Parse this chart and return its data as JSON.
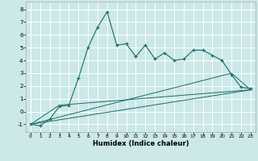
{
  "xlabel": "Humidex (Indice chaleur)",
  "xlim": [
    -0.5,
    23.5
  ],
  "ylim": [
    -1.6,
    8.6
  ],
  "yticks": [
    -1,
    0,
    1,
    2,
    3,
    4,
    5,
    6,
    7,
    8
  ],
  "xticks": [
    0,
    1,
    2,
    3,
    4,
    5,
    6,
    7,
    8,
    9,
    10,
    11,
    12,
    13,
    14,
    15,
    16,
    17,
    18,
    19,
    20,
    21,
    22,
    23
  ],
  "bg_color": "#cce8e8",
  "line_color": "#1a6b6b",
  "grid_color": "#ffffff",
  "series1_x": [
    0,
    1,
    2,
    3,
    4,
    5,
    6,
    7,
    8,
    9,
    10,
    11,
    12,
    13,
    14,
    15,
    16,
    17,
    18,
    19,
    20,
    21,
    22,
    23
  ],
  "series1_y": [
    -1.0,
    -1.1,
    -0.6,
    0.4,
    0.5,
    2.6,
    5.0,
    6.6,
    7.8,
    5.2,
    5.3,
    4.3,
    5.2,
    4.1,
    4.6,
    4.0,
    4.1,
    4.8,
    4.8,
    4.4,
    4.0,
    2.9,
    1.9,
    1.8
  ],
  "series2_x": [
    0,
    23
  ],
  "series2_y": [
    -1.0,
    1.7
  ],
  "series3_x": [
    0,
    21,
    23
  ],
  "series3_y": [
    -1.0,
    3.0,
    1.7
  ],
  "series4_x": [
    0,
    3,
    23
  ],
  "series4_y": [
    -1.0,
    0.5,
    1.7
  ]
}
